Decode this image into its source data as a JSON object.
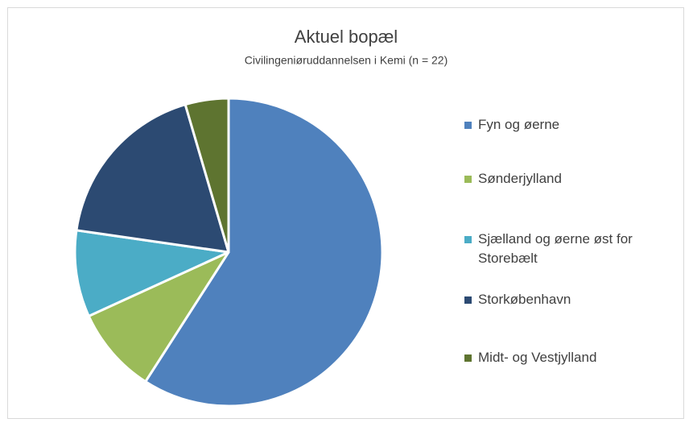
{
  "chart_data": {
    "type": "pie",
    "title": "Aktuel bopæl",
    "subtitle": "Civilingeniøruddannelsen i Kemi (n = 22)",
    "categories": [
      "Fyn og øerne",
      "Sønderjylland",
      "Sjælland og øerne øst for Storebælt",
      "Storkøbenhavn",
      "Midt- og Vestjylland"
    ],
    "values": [
      13,
      2,
      2,
      4,
      1
    ],
    "colors": [
      "#4f81bd",
      "#9bbb59",
      "#4bacc6",
      "#2c4a72",
      "#5e7430"
    ],
    "legend": "right"
  }
}
